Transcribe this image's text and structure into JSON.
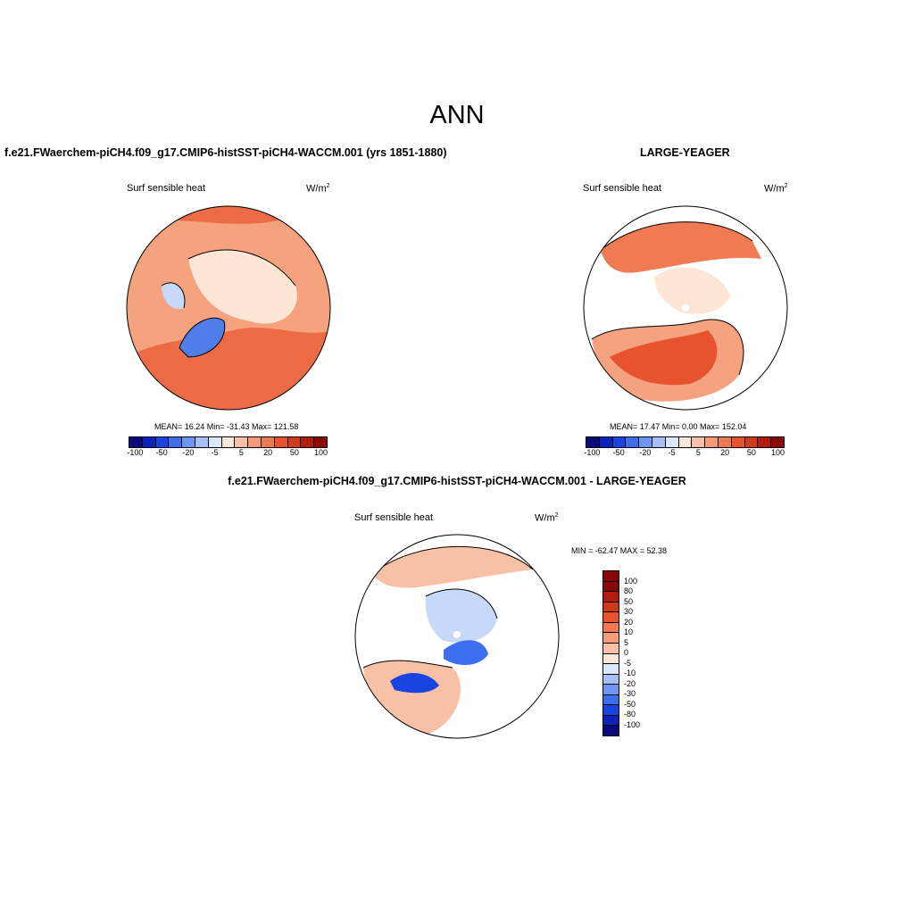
{
  "main_title": "ANN",
  "panels": [
    {
      "case_title": "f.e21.FWaerchem-piCH4.f09_g17.CMIP6-histSST-piCH4-WACCM.001 (yrs 1851-1880)",
      "variable": "Surf sensible heat",
      "units": "W/m",
      "units_sup": "2",
      "stats": "MEAN=  16.24  Min= -31.43  Max= 121.58"
    },
    {
      "case_title": "LARGE-YEAGER",
      "variable": "Surf sensible heat",
      "units": "W/m",
      "units_sup": "2",
      "stats": "MEAN=  17.47  Min=   0.00  Max= 152.04"
    },
    {
      "case_title": "f.e21.FWaerchem-piCH4.f09_g17.CMIP6-histSST-piCH4-WACCM.001 - LARGE-YEAGER",
      "variable": "Surf sensible heat",
      "units": "W/m",
      "units_sup": "2",
      "stats": "MIN = -62.47 MAX =  52.38"
    }
  ],
  "colorbar_top": {
    "colors": [
      "#0a0a7a",
      "#0d23b8",
      "#1a44e0",
      "#3d6ef0",
      "#6e97f5",
      "#a6c0f7",
      "#d9e6fb",
      "#fde8d8",
      "#f8c1a5",
      "#f59b77",
      "#f07a52",
      "#e6532e",
      "#cf3a1a",
      "#b31d0d",
      "#870606"
    ],
    "labels": [
      "-100",
      "-50",
      "-20",
      "-5",
      "5",
      "20",
      "50",
      "100"
    ]
  },
  "colorbar_diff": {
    "colors": [
      "#0a0a7a",
      "#0d23b8",
      "#1a44e0",
      "#3d6ef0",
      "#6e97f5",
      "#a6c0f7",
      "#d9e6fb",
      "#fde8d8",
      "#f8c1a5",
      "#f59b77",
      "#f07a52",
      "#e6532e",
      "#cf3a1a",
      "#b31d0d",
      "#870606"
    ],
    "labels": [
      "-100",
      "-80",
      "-50",
      "-30",
      "-20",
      "-10",
      "-5",
      "0",
      "5",
      "10",
      "20",
      "30",
      "50",
      "80",
      "100"
    ]
  }
}
